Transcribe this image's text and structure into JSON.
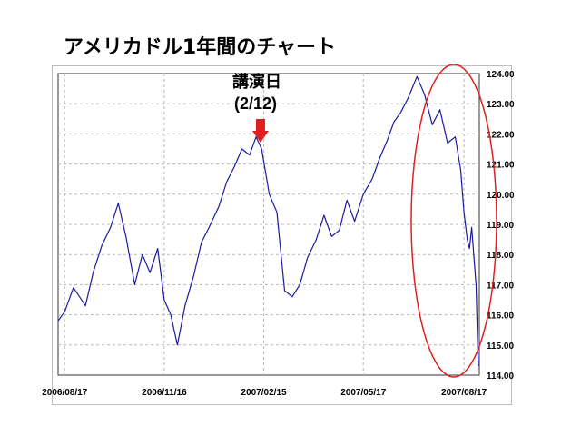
{
  "title": "アメリカドル1年間のチャート",
  "annotation": {
    "label": "講演日",
    "date": "(2/12)",
    "arrow_color": "#e02020"
  },
  "colors": {
    "series": "#1a1aa0",
    "grid": "#b8b8b8",
    "highlight": "#e02020",
    "axis": "#333333"
  },
  "chart_data": {
    "type": "line",
    "title": "",
    "xlabel": "",
    "ylabel": "",
    "ylim": [
      114.0,
      124.0
    ],
    "y_ticks": [
      "114.00",
      "115.00",
      "116.00",
      "117.00",
      "118.00",
      "119.00",
      "120.00",
      "121.00",
      "122.00",
      "123.00",
      "124.00"
    ],
    "x_ticks": [
      "2006/08/17",
      "2006/11/16",
      "2007/02/15",
      "2007/05/17",
      "2007/08/17"
    ],
    "x_range": [
      "2006/08/11",
      "2007/08/31"
    ],
    "grid": true,
    "series": [
      {
        "name": "",
        "x": [
          "2006/08/11",
          "2006/08/17",
          "2006/08/25",
          "2006/09/05",
          "2006/09/12",
          "2006/09/20",
          "2006/09/28",
          "2006/10/05",
          "2006/10/12",
          "2006/10/20",
          "2006/10/27",
          "2006/11/03",
          "2006/11/10",
          "2006/11/16",
          "2006/11/22",
          "2006/11/28",
          "2006/12/05",
          "2006/12/13",
          "2006/12/20",
          "2006/12/27",
          "2007/01/05",
          "2007/01/12",
          "2007/01/19",
          "2007/01/26",
          "2007/02/02",
          "2007/02/08",
          "2007/02/13",
          "2007/02/20",
          "2007/02/27",
          "2007/03/06",
          "2007/03/13",
          "2007/03/20",
          "2007/03/27",
          "2007/04/04",
          "2007/04/11",
          "2007/04/18",
          "2007/04/25",
          "2007/05/02",
          "2007/05/09",
          "2007/05/17",
          "2007/05/25",
          "2007/06/01",
          "2007/06/08",
          "2007/06/14",
          "2007/06/20",
          "2007/06/27",
          "2007/07/05",
          "2007/07/12",
          "2007/07/19",
          "2007/07/26",
          "2007/08/02",
          "2007/08/09",
          "2007/08/14",
          "2007/08/17",
          "2007/08/20",
          "2007/08/22",
          "2007/08/24",
          "2007/08/28",
          "2007/08/30"
        ],
        "values": [
          115.8,
          116.1,
          116.9,
          116.3,
          117.4,
          118.3,
          118.9,
          119.7,
          118.6,
          117.0,
          118.0,
          117.4,
          118.2,
          116.5,
          116.0,
          115.0,
          116.3,
          117.3,
          118.4,
          118.9,
          119.6,
          120.4,
          120.9,
          121.5,
          121.3,
          121.9,
          121.5,
          120.0,
          119.4,
          116.8,
          116.6,
          117.0,
          117.9,
          118.5,
          119.3,
          118.6,
          118.8,
          119.8,
          119.1,
          120.0,
          120.5,
          121.2,
          121.8,
          122.4,
          122.7,
          123.2,
          123.9,
          123.3,
          122.3,
          122.8,
          121.7,
          121.9,
          120.8,
          119.4,
          118.5,
          118.2,
          118.9,
          117.0,
          114.3
        ]
      }
    ]
  }
}
